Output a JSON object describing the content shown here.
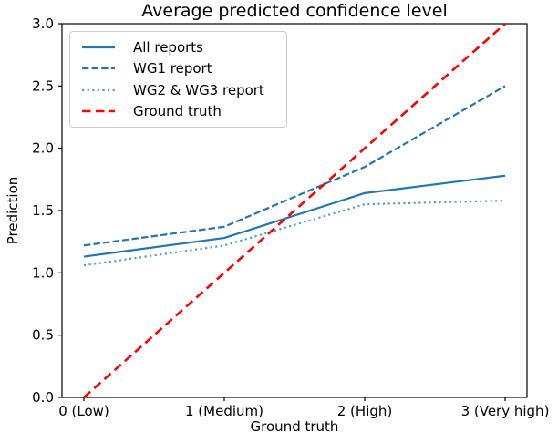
{
  "chart_data": {
    "type": "line",
    "title": "Average predicted confidence level",
    "xlabel": "Ground truth",
    "ylabel": "Prediction",
    "x": [
      0,
      1,
      2,
      3
    ],
    "x_tick_labels": [
      "0 (Low)",
      "1 (Medium)",
      "2 (High)",
      "3 (Very high)"
    ],
    "y_ticks": [
      0.0,
      0.5,
      1.0,
      1.5,
      2.0,
      2.5,
      3.0
    ],
    "y_tick_labels": [
      "0.0",
      "0.5",
      "1.0",
      "1.5",
      "2.0",
      "2.5",
      "3.0"
    ],
    "xlim": [
      -0.155,
      3.155
    ],
    "ylim": [
      0.0,
      3.0
    ],
    "grid": false,
    "legend_position": "upper left",
    "axis_color": "#000000",
    "series": [
      {
        "name": "All reports",
        "style": "solid",
        "color": "#1f77b4",
        "values": [
          1.13,
          1.28,
          1.64,
          1.78
        ]
      },
      {
        "name": "WG1 report",
        "style": "dashed",
        "color": "#1f77b4",
        "values": [
          1.22,
          1.37,
          1.85,
          2.5
        ]
      },
      {
        "name": "WG2 & WG3 report",
        "style": "dotted",
        "color": "#5b9bc9",
        "values": [
          1.06,
          1.22,
          1.55,
          1.58
        ]
      },
      {
        "name": "Ground truth",
        "style": "dashed-long",
        "color": "#ff0000",
        "values": [
          0.0,
          1.0,
          2.0,
          3.0
        ]
      }
    ]
  }
}
